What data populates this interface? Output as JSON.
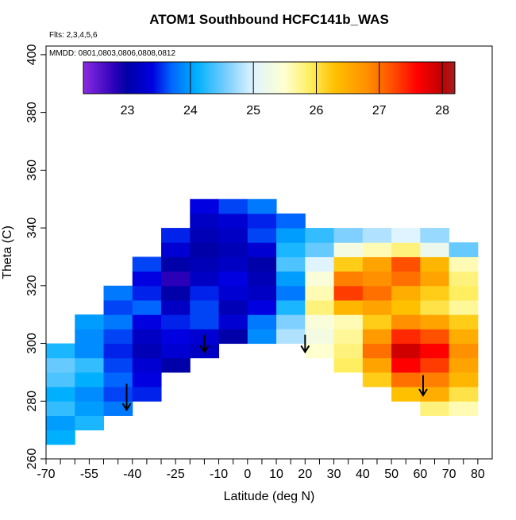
{
  "chart_data": {
    "type": "heatmap",
    "title": "ATOM1 Southbound HCFC141b_WAS",
    "annotations": [
      "Flts: 2,3,4,5,6",
      "MMDD: 0801,0803,0806,0808,0812"
    ],
    "x_label": "Latitude (deg N)",
    "y_label": "Theta (C)",
    "xlim": [
      -70,
      85
    ],
    "ylim": [
      260,
      403
    ],
    "xticks": [
      -70,
      -55,
      -40,
      -25,
      -10,
      0,
      10,
      20,
      30,
      40,
      50,
      60,
      70,
      80
    ],
    "xminor": [
      -65,
      -60,
      -50,
      -45,
      -35,
      -30,
      -20,
      -15,
      -5,
      5,
      15,
      25,
      35,
      45,
      55,
      65,
      75
    ],
    "yticks": [
      260,
      280,
      300,
      320,
      340,
      360,
      380,
      400
    ],
    "x_bins": [
      -70,
      -60,
      -50,
      -40,
      -30,
      -20,
      -10,
      0,
      10,
      20,
      30,
      40,
      50,
      60,
      70,
      80
    ],
    "y_bins": [
      265,
      270,
      275,
      280,
      285,
      290,
      295,
      300,
      305,
      310,
      315,
      320,
      325,
      330,
      335,
      340,
      345,
      350
    ],
    "z": [
      [
        24.1,
        null,
        null,
        null,
        null,
        null,
        null,
        null,
        null,
        null,
        null,
        null,
        null,
        null,
        null
      ],
      [
        24.0,
        24.2,
        null,
        null,
        null,
        null,
        null,
        null,
        null,
        null,
        null,
        null,
        null,
        null,
        null
      ],
      [
        24.3,
        24.0,
        23.8,
        null,
        null,
        null,
        null,
        null,
        null,
        null,
        null,
        null,
        null,
        25.8,
        25.6
      ],
      [
        24.1,
        23.9,
        23.6,
        23.5,
        null,
        null,
        null,
        null,
        null,
        null,
        null,
        null,
        26.3,
        26.5,
        26.0
      ],
      [
        24.4,
        24.1,
        23.7,
        23.4,
        null,
        null,
        null,
        null,
        null,
        null,
        null,
        26.2,
        27.0,
        26.9,
        26.4
      ],
      [
        24.5,
        24.3,
        23.6,
        23.3,
        23.0,
        null,
        null,
        null,
        null,
        null,
        25.9,
        26.6,
        27.6,
        27.3,
        26.6
      ],
      [
        24.2,
        23.9,
        23.5,
        23.1,
        23.3,
        23.2,
        null,
        null,
        null,
        25.5,
        25.8,
        27.0,
        27.9,
        27.6,
        26.8
      ],
      [
        null,
        23.9,
        23.6,
        23.2,
        23.4,
        23.3,
        23.0,
        23.9,
        24.8,
        25.3,
        25.7,
        26.7,
        27.4,
        27.2,
        26.5
      ],
      [
        null,
        24.0,
        23.8,
        23.4,
        23.5,
        23.6,
        23.3,
        23.8,
        24.6,
        25.4,
        25.6,
        26.2,
        26.8,
        26.6,
        26.2
      ],
      [
        null,
        null,
        23.6,
        23.7,
        23.2,
        23.6,
        23.1,
        23.4,
        24.2,
        25.8,
        26.4,
        26.6,
        26.3,
        26.0,
        25.7
      ],
      [
        null,
        null,
        23.8,
        23.5,
        23.0,
        23.5,
        23.3,
        23.2,
        23.8,
        25.6,
        27.3,
        27.0,
        26.5,
        26.2,
        25.9
      ],
      [
        null,
        null,
        null,
        23.4,
        22.8,
        23.2,
        23.4,
        23.1,
        24.0,
        25.4,
        26.9,
        26.8,
        27.0,
        26.6,
        25.8
      ],
      [
        null,
        null,
        null,
        23.6,
        23.0,
        23.1,
        23.2,
        23.0,
        24.4,
        25.0,
        26.2,
        26.6,
        27.2,
        26.4,
        25.6
      ],
      [
        null,
        null,
        null,
        null,
        23.3,
        23.0,
        23.1,
        23.3,
        24.2,
        24.5,
        25.3,
        25.6,
        25.8,
        25.2,
        24.5
      ],
      [
        null,
        null,
        null,
        null,
        23.5,
        23.1,
        23.2,
        23.6,
        24.0,
        24.3,
        24.6,
        24.8,
        25.0,
        24.7,
        null
      ],
      [
        null,
        null,
        null,
        null,
        null,
        23.2,
        23.3,
        23.5,
        23.7,
        null,
        null,
        null,
        null,
        null,
        null
      ],
      [
        null,
        null,
        null,
        null,
        null,
        23.4,
        23.6,
        23.8,
        null,
        null,
        null,
        null,
        null,
        null,
        null
      ]
    ],
    "colorbar_lim": [
      22.3,
      28.2
    ],
    "colorbar_ticks": [
      23,
      24,
      25,
      26,
      27,
      28
    ],
    "colormap": [
      {
        "value": 22.3,
        "color": "#8a2be2"
      },
      {
        "value": 22.8,
        "color": "#2a00b8"
      },
      {
        "value": 23.0,
        "color": "#0000a8"
      },
      {
        "value": 23.4,
        "color": "#0000e0"
      },
      {
        "value": 23.7,
        "color": "#0066ff"
      },
      {
        "value": 24.1,
        "color": "#00b0ff"
      },
      {
        "value": 24.6,
        "color": "#80d0ff"
      },
      {
        "value": 25.0,
        "color": "#e0f4ff"
      },
      {
        "value": 25.5,
        "color": "#ffffd0"
      },
      {
        "value": 25.9,
        "color": "#ffee60"
      },
      {
        "value": 26.3,
        "color": "#ffc000"
      },
      {
        "value": 26.8,
        "color": "#ff9000"
      },
      {
        "value": 27.2,
        "color": "#ff5000"
      },
      {
        "value": 27.6,
        "color": "#ff0000"
      },
      {
        "value": 28.0,
        "color": "#c00000"
      },
      {
        "value": 28.2,
        "color": "#a02020"
      }
    ],
    "arrows": [
      {
        "x": -42,
        "y": [
          286,
          277
        ]
      },
      {
        "x": -15,
        "y": [
          303,
          297
        ]
      },
      {
        "x": 20,
        "y": [
          303,
          297
        ]
      },
      {
        "x": 61,
        "y": [
          289,
          282
        ]
      }
    ]
  }
}
